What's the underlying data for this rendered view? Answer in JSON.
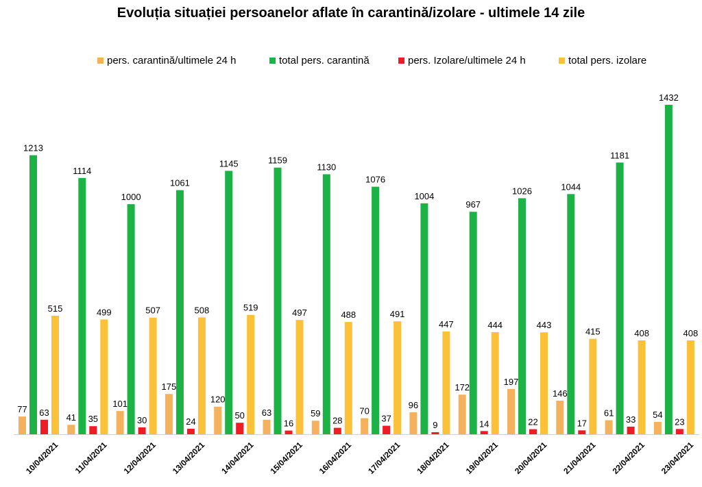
{
  "chart_data": {
    "type": "bar",
    "title": "Evoluția situației persoanelor aflate în carantină/izolare - ultimele 14 zile",
    "categories": [
      "10/04/2021",
      "11/04/2021",
      "12/04/2021",
      "13/04/2021",
      "14/04/2021",
      "15/04/2021",
      "16/04/2021",
      "17/04/2021",
      "18/04/2021",
      "19/04/2021",
      "20/04/2021",
      "21/04/2021",
      "22/04/2021",
      "23/04/2021"
    ],
    "series": [
      {
        "name": "pers. carantină/ultimele 24 h",
        "color": "#F4B25F",
        "values": [
          77,
          41,
          101,
          175,
          120,
          63,
          59,
          70,
          96,
          172,
          197,
          146,
          61,
          54
        ]
      },
      {
        "name": "total pers. carantină",
        "color": "#1DB245",
        "values": [
          1213,
          1114,
          1000,
          1061,
          1145,
          1159,
          1130,
          1076,
          1004,
          967,
          1026,
          1044,
          1181,
          1432
        ]
      },
      {
        "name": "pers. Izolare/ultimele 24 h",
        "color": "#EE1C25",
        "values": [
          63,
          35,
          30,
          24,
          50,
          16,
          28,
          37,
          9,
          14,
          22,
          17,
          33,
          23
        ]
      },
      {
        "name": "total pers. izolare",
        "color": "#FBC239",
        "values": [
          515,
          499,
          507,
          508,
          519,
          497,
          488,
          491,
          447,
          444,
          443,
          415,
          408,
          408
        ]
      }
    ],
    "ylim": [
      0,
      1432
    ],
    "legend_position": "top",
    "grid": false
  }
}
